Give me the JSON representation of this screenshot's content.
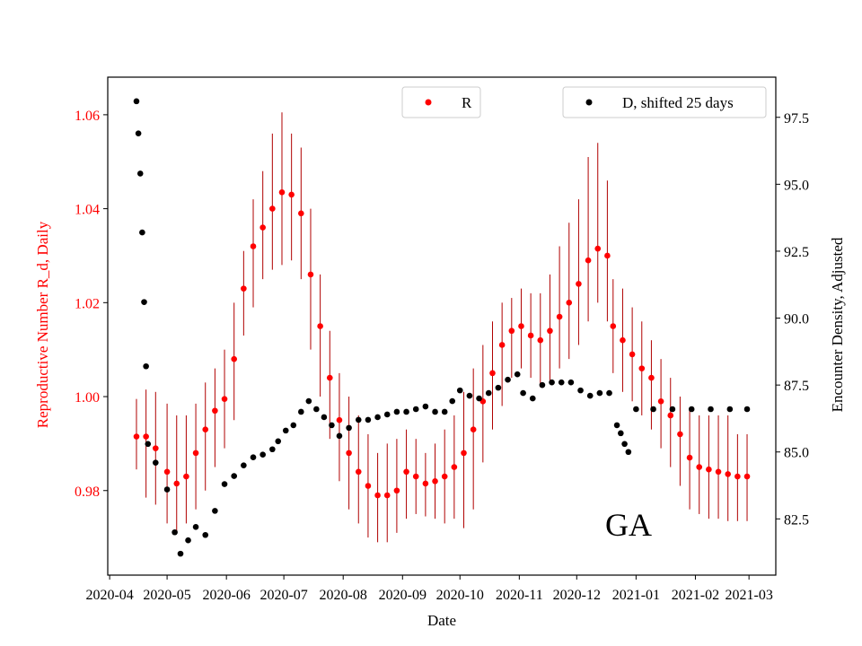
{
  "chart_data": {
    "type": "scatter",
    "state_label": "GA",
    "xlabel": "Date",
    "ylabel_left": "Reproductive Number R_d, Daily",
    "ylabel_right": "Encounter Density, Adjusted",
    "x_ticks": [
      "2020-04",
      "2020-05",
      "2020-06",
      "2020-07",
      "2020-08",
      "2020-09",
      "2020-10",
      "2020-11",
      "2020-12",
      "2021-01",
      "2021-02",
      "2021-03"
    ],
    "xlim": [
      "2020-03-31",
      "2021-03-15"
    ],
    "ylim_left": [
      0.962,
      1.068
    ],
    "ylim_right": [
      80.4,
      99.0
    ],
    "y_ticks_left": [
      0.98,
      1.0,
      1.02,
      1.04,
      1.06
    ],
    "y_ticks_right": [
      82.5,
      85.0,
      87.5,
      90.0,
      92.5,
      95.0,
      97.5
    ],
    "colors": {
      "R": "#ff0000",
      "R_error": "#b00000",
      "D": "#000000",
      "left_axis": "#ff0000"
    },
    "legend": [
      {
        "label": "R",
        "color": "#ff0000",
        "position": "upper-center"
      },
      {
        "label": "D, shifted 25 days",
        "color": "#000000",
        "position": "upper-right"
      }
    ],
    "series": [
      {
        "name": "R",
        "axis": "left",
        "points": [
          [
            "2020-04-15",
            0.9915,
            0.9995,
            0.9845
          ],
          [
            "2020-04-20",
            0.9915,
            1.0015,
            0.9785
          ],
          [
            "2020-04-25",
            0.989,
            1.001,
            0.977
          ],
          [
            "2020-05-01",
            0.984,
            0.9985,
            0.973
          ],
          [
            "2020-05-06",
            0.9815,
            0.996,
            0.971
          ],
          [
            "2020-05-11",
            0.983,
            0.996,
            0.973
          ],
          [
            "2020-05-16",
            0.988,
            0.9985,
            0.976
          ],
          [
            "2020-05-21",
            0.993,
            1.003,
            0.98
          ],
          [
            "2020-05-26",
            0.997,
            1.006,
            0.985
          ],
          [
            "2020-05-31",
            0.9995,
            1.01,
            0.989
          ],
          [
            "2020-06-05",
            1.008,
            1.02,
            0.995
          ],
          [
            "2020-06-10",
            1.023,
            1.031,
            1.013
          ],
          [
            "2020-06-15",
            1.032,
            1.042,
            1.019
          ],
          [
            "2020-06-20",
            1.036,
            1.048,
            1.025
          ],
          [
            "2020-06-25",
            1.04,
            1.056,
            1.027
          ],
          [
            "2020-06-30",
            1.0435,
            1.0605,
            1.028
          ],
          [
            "2020-07-05",
            1.043,
            1.056,
            1.029
          ],
          [
            "2020-07-10",
            1.039,
            1.053,
            1.025
          ],
          [
            "2020-07-15",
            1.026,
            1.04,
            1.01
          ],
          [
            "2020-07-20",
            1.015,
            1.026,
            1.0
          ],
          [
            "2020-07-25",
            1.004,
            1.014,
            0.991
          ],
          [
            "2020-07-30",
            0.995,
            1.005,
            0.982
          ],
          [
            "2020-08-04",
            0.988,
            1.0,
            0.976
          ],
          [
            "2020-08-09",
            0.984,
            0.996,
            0.973
          ],
          [
            "2020-08-14",
            0.981,
            0.992,
            0.97
          ],
          [
            "2020-08-19",
            0.979,
            0.988,
            0.969
          ],
          [
            "2020-08-24",
            0.979,
            0.99,
            0.969
          ],
          [
            "2020-08-29",
            0.98,
            0.991,
            0.971
          ],
          [
            "2020-09-03",
            0.984,
            0.993,
            0.974
          ],
          [
            "2020-09-08",
            0.983,
            0.991,
            0.975
          ],
          [
            "2020-09-13",
            0.9815,
            0.988,
            0.9745
          ],
          [
            "2020-09-18",
            0.982,
            0.99,
            0.974
          ],
          [
            "2020-09-23",
            0.983,
            0.993,
            0.973
          ],
          [
            "2020-09-28",
            0.985,
            0.996,
            0.974
          ],
          [
            "2020-10-03",
            0.988,
            1.001,
            0.972
          ],
          [
            "2020-10-08",
            0.993,
            1.006,
            0.976
          ],
          [
            "2020-10-13",
            0.999,
            1.011,
            0.986
          ],
          [
            "2020-10-18",
            1.005,
            1.016,
            0.993
          ],
          [
            "2020-10-23",
            1.011,
            1.02,
            0.998
          ],
          [
            "2020-10-28",
            1.014,
            1.021,
            1.004
          ],
          [
            "2020-11-02",
            1.015,
            1.023,
            1.006
          ],
          [
            "2020-11-07",
            1.013,
            1.022,
            1.004
          ],
          [
            "2020-11-12",
            1.012,
            1.022,
            1.002
          ],
          [
            "2020-11-17",
            1.014,
            1.026,
            1.003
          ],
          [
            "2020-11-22",
            1.017,
            1.032,
            1.006
          ],
          [
            "2020-11-27",
            1.02,
            1.037,
            1.008
          ],
          [
            "2020-12-02",
            1.024,
            1.042,
            1.011
          ],
          [
            "2020-12-07",
            1.029,
            1.051,
            1.016
          ],
          [
            "2020-12-12",
            1.0315,
            1.054,
            1.02
          ],
          [
            "2020-12-17",
            1.03,
            1.046,
            1.016
          ],
          [
            "2020-12-20",
            1.015,
            1.025,
            1.005
          ],
          [
            "2020-12-25",
            1.012,
            1.023,
            1.001
          ],
          [
            "2020-12-30",
            1.009,
            1.019,
            0.999
          ],
          [
            "2021-01-04",
            1.006,
            1.016,
            0.996
          ],
          [
            "2021-01-09",
            1.004,
            1.012,
            0.993
          ],
          [
            "2021-01-14",
            0.999,
            1.008,
            0.989
          ],
          [
            "2021-01-19",
            0.996,
            1.004,
            0.985
          ],
          [
            "2021-01-24",
            0.992,
            1.0,
            0.981
          ],
          [
            "2021-01-29",
            0.987,
            0.997,
            0.976
          ],
          [
            "2021-02-03",
            0.985,
            0.996,
            0.975
          ],
          [
            "2021-02-08",
            0.9845,
            0.996,
            0.974
          ],
          [
            "2021-02-13",
            0.984,
            0.996,
            0.974
          ],
          [
            "2021-02-18",
            0.9835,
            0.996,
            0.9735
          ],
          [
            "2021-02-23",
            0.983,
            0.992,
            0.9735
          ],
          [
            "2021-02-28",
            0.983,
            0.992,
            0.9735
          ]
        ]
      },
      {
        "name": "D, shifted 25 days",
        "axis": "right",
        "points": [
          [
            "2020-04-15",
            98.1
          ],
          [
            "2020-04-16",
            96.9
          ],
          [
            "2020-04-17",
            95.4
          ],
          [
            "2020-04-18",
            93.2
          ],
          [
            "2020-04-19",
            90.6
          ],
          [
            "2020-04-20",
            88.2
          ],
          [
            "2020-04-21",
            85.3
          ],
          [
            "2020-04-25",
            84.6
          ],
          [
            "2020-05-01",
            83.6
          ],
          [
            "2020-05-05",
            82.0
          ],
          [
            "2020-05-08",
            81.2
          ],
          [
            "2020-05-12",
            81.7
          ],
          [
            "2020-05-16",
            82.2
          ],
          [
            "2020-05-21",
            81.9
          ],
          [
            "2020-05-26",
            82.8
          ],
          [
            "2020-05-31",
            83.8
          ],
          [
            "2020-06-05",
            84.1
          ],
          [
            "2020-06-10",
            84.5
          ],
          [
            "2020-06-15",
            84.8
          ],
          [
            "2020-06-20",
            84.9
          ],
          [
            "2020-06-25",
            85.1
          ],
          [
            "2020-06-28",
            85.4
          ],
          [
            "2020-07-02",
            85.8
          ],
          [
            "2020-07-06",
            86.0
          ],
          [
            "2020-07-10",
            86.5
          ],
          [
            "2020-07-14",
            86.9
          ],
          [
            "2020-07-18",
            86.6
          ],
          [
            "2020-07-22",
            86.3
          ],
          [
            "2020-07-26",
            86.0
          ],
          [
            "2020-07-30",
            85.6
          ],
          [
            "2020-08-04",
            85.9
          ],
          [
            "2020-08-09",
            86.2
          ],
          [
            "2020-08-14",
            86.2
          ],
          [
            "2020-08-19",
            86.3
          ],
          [
            "2020-08-24",
            86.4
          ],
          [
            "2020-08-29",
            86.5
          ],
          [
            "2020-09-03",
            86.5
          ],
          [
            "2020-09-08",
            86.6
          ],
          [
            "2020-09-13",
            86.7
          ],
          [
            "2020-09-18",
            86.5
          ],
          [
            "2020-09-23",
            86.5
          ],
          [
            "2020-09-27",
            86.9
          ],
          [
            "2020-10-01",
            87.3
          ],
          [
            "2020-10-06",
            87.1
          ],
          [
            "2020-10-11",
            87.0
          ],
          [
            "2020-10-16",
            87.2
          ],
          [
            "2020-10-21",
            87.4
          ],
          [
            "2020-10-26",
            87.7
          ],
          [
            "2020-10-31",
            87.9
          ],
          [
            "2020-11-03",
            87.2
          ],
          [
            "2020-11-08",
            87.0
          ],
          [
            "2020-11-13",
            87.5
          ],
          [
            "2020-11-18",
            87.6
          ],
          [
            "2020-11-23",
            87.6
          ],
          [
            "2020-11-28",
            87.6
          ],
          [
            "2020-12-03",
            87.3
          ],
          [
            "2020-12-08",
            87.1
          ],
          [
            "2020-12-13",
            87.2
          ],
          [
            "2020-12-18",
            87.2
          ],
          [
            "2020-12-22",
            86.0
          ],
          [
            "2020-12-24",
            85.7
          ],
          [
            "2020-12-26",
            85.3
          ],
          [
            "2020-12-28",
            85.0
          ],
          [
            "2021-01-01",
            86.6
          ],
          [
            "2021-01-10",
            86.6
          ],
          [
            "2021-01-20",
            86.6
          ],
          [
            "2021-01-30",
            86.6
          ],
          [
            "2021-02-09",
            86.6
          ],
          [
            "2021-02-19",
            86.6
          ],
          [
            "2021-02-28",
            86.6
          ]
        ]
      }
    ]
  }
}
